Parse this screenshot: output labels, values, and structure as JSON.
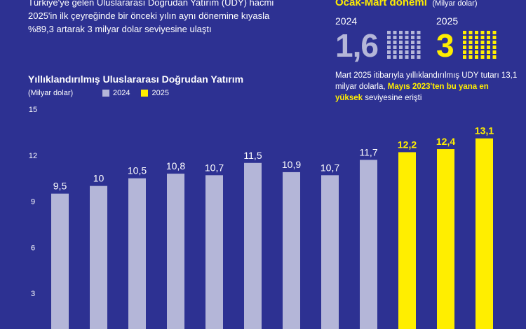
{
  "intro": {
    "line1": "Türkiye'ye gelen Uluslararası Doğrudan Yatırım (UDY) hacmi",
    "line2": "2025'in ilk çeyreğinde bir önceki yılın aynı dönemine kıyasla",
    "line3": "%89,3 artarak 3 milyar dolar seviyesine ulaştı"
  },
  "panel": {
    "title": "Ocak-Mart dönemi",
    "unit": "(Milyar dolar)",
    "year_a": "2024",
    "value_a": "1,6",
    "year_b": "2025",
    "value_b": "3",
    "note_plain": "Mart 2025 itibarıyla yıllıklandırılmış UDY tutarı 13,1 milyar dolarla, ",
    "note_highlight": "Mayıs 2023'ten bu yana en yüksek",
    "note_end": " seviyesine erişti",
    "colors": {
      "accent": "#ffee00",
      "muted": "#b4b6d8"
    }
  },
  "chart_data": {
    "type": "bar",
    "title": "Yıllıklandırılmış Uluslararası Doğrudan Yatırım",
    "ylabel": "(Milyar dolar)",
    "ylim": [
      0,
      15
    ],
    "yticks": [
      3,
      6,
      9,
      12,
      15
    ],
    "grid": false,
    "legend": [
      {
        "name": "2024",
        "color": "#b4b6d8"
      },
      {
        "name": "2025",
        "color": "#ffee00"
      }
    ],
    "values": [
      9.5,
      10,
      10.5,
      10.8,
      10.7,
      11.5,
      10.9,
      10.7,
      11.7,
      12.2,
      12.4,
      13.1
    ],
    "labels": [
      "9,5",
      "10",
      "10,5",
      "10,8",
      "10,7",
      "11,5",
      "10,9",
      "10,7",
      "11,7",
      "12,2",
      "12,4",
      "13,1"
    ],
    "series_index": [
      0,
      0,
      0,
      0,
      0,
      0,
      0,
      0,
      0,
      1,
      1,
      1
    ]
  }
}
